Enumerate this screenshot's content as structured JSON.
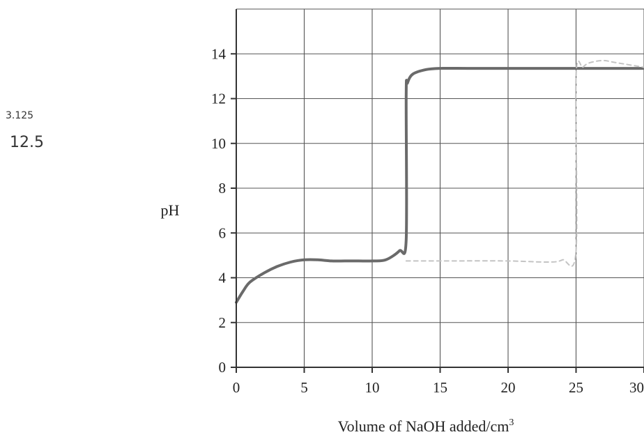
{
  "chart_data": {
    "type": "line",
    "xlabel": "Volume of NaOH added/cm",
    "xlabel_superscript": "3",
    "ylabel": "pH",
    "xlim": [
      0,
      30
    ],
    "ylim": [
      0,
      16
    ],
    "x_ticks": [
      "0",
      "5",
      "10",
      "15",
      "20",
      "25",
      "30"
    ],
    "y_ticks": [
      "0",
      "2",
      "4",
      "6",
      "8",
      "10",
      "12",
      "14"
    ],
    "grid": true,
    "series": [
      {
        "x": [
          0,
          0.5,
          1,
          2,
          3,
          4,
          5,
          6,
          7,
          8,
          9,
          10,
          11,
          12,
          12.5,
          12.5,
          12.6,
          13,
          14,
          15,
          17,
          20,
          25,
          30
        ],
        "y": [
          2.9,
          3.4,
          3.8,
          4.2,
          4.5,
          4.7,
          4.8,
          4.8,
          4.75,
          4.75,
          4.75,
          4.75,
          4.8,
          5.2,
          5.7,
          12.2,
          12.7,
          13.1,
          13.3,
          13.35,
          13.35,
          13.35,
          13.35,
          13.35
        ]
      },
      {
        "x": [
          12.5,
          15,
          20,
          23,
          24,
          25,
          25,
          25.5,
          26,
          27,
          28,
          30
        ],
        "y": [
          4.75,
          4.75,
          4.75,
          4.7,
          4.8,
          5.2,
          13.0,
          13.4,
          13.6,
          13.7,
          13.6,
          13.4
        ]
      }
    ]
  },
  "annotations": {
    "handwritten_note_1": "3.125",
    "handwritten_note_2": "12.5"
  }
}
